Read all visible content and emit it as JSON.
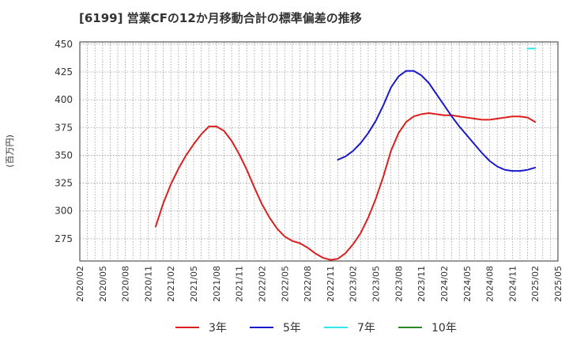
{
  "chart_data": {
    "type": "line",
    "title": "[6199]  営業CFの12か月移動合計の標準偏差の推移",
    "ylabel": "(百万円)",
    "xlabel": "",
    "ylim": [
      255,
      452
    ],
    "yticks": [
      275,
      300,
      325,
      350,
      375,
      400,
      425,
      450
    ],
    "xlim": [
      "2020-02",
      "2025-05"
    ],
    "xticks": [
      "2020/02",
      "2020/05",
      "2020/08",
      "2020/11",
      "2021/02",
      "2021/05",
      "2021/08",
      "2021/11",
      "2022/02",
      "2022/05",
      "2022/08",
      "2022/11",
      "2023/02",
      "2023/05",
      "2023/08",
      "2023/11",
      "2024/02",
      "2024/05",
      "2024/08",
      "2024/11",
      "2025/02",
      "2025/05"
    ],
    "grid": true,
    "legend_position": "bottom",
    "series": [
      {
        "name": "3年",
        "color": "#dd1f1f",
        "x": [
          "2020-12",
          "2021-01",
          "2021-02",
          "2021-03",
          "2021-04",
          "2021-05",
          "2021-06",
          "2021-07",
          "2021-08",
          "2021-09",
          "2021-10",
          "2021-11",
          "2021-12",
          "2022-01",
          "2022-02",
          "2022-03",
          "2022-04",
          "2022-05",
          "2022-06",
          "2022-07",
          "2022-08",
          "2022-09",
          "2022-10",
          "2022-11",
          "2022-12",
          "2023-01",
          "2023-02",
          "2023-03",
          "2023-04",
          "2023-05",
          "2023-06",
          "2023-07",
          "2023-08",
          "2023-09",
          "2023-10",
          "2023-11",
          "2023-12",
          "2024-01",
          "2024-02",
          "2024-03",
          "2024-04",
          "2024-05",
          "2024-06",
          "2024-07",
          "2024-08",
          "2024-09",
          "2024-10",
          "2024-11",
          "2024-12",
          "2025-01",
          "2025-02"
        ],
        "values": [
          286,
          307,
          324,
          338,
          350,
          360,
          369,
          376,
          376,
          372,
          363,
          351,
          337,
          321,
          306,
          294,
          284,
          277,
          273,
          271,
          267,
          262,
          258,
          256,
          257,
          262,
          270,
          280,
          294,
          311,
          331,
          354,
          370,
          380,
          385,
          387,
          388,
          387,
          386,
          386,
          385,
          384,
          383,
          382,
          382,
          383,
          384,
          385,
          385,
          384,
          380
        ]
      },
      {
        "name": "5年",
        "color": "#1a1acc",
        "x": [
          "2022-12",
          "2023-01",
          "2023-02",
          "2023-03",
          "2023-04",
          "2023-05",
          "2023-06",
          "2023-07",
          "2023-08",
          "2023-09",
          "2023-10",
          "2023-11",
          "2023-12",
          "2024-01",
          "2024-02",
          "2024-03",
          "2024-04",
          "2024-05",
          "2024-06",
          "2024-07",
          "2024-08",
          "2024-09",
          "2024-10",
          "2024-11",
          "2024-12",
          "2025-01",
          "2025-02"
        ],
        "values": [
          346,
          349,
          354,
          361,
          370,
          381,
          395,
          411,
          421,
          426,
          426,
          422,
          415,
          405,
          395,
          385,
          376,
          368,
          360,
          352,
          345,
          340,
          337,
          336,
          336,
          337,
          339
        ]
      },
      {
        "name": "7年",
        "color": "#2ee8ee",
        "x": [
          "2025-01",
          "2025-02"
        ],
        "values": [
          446,
          446
        ]
      },
      {
        "name": "10年",
        "color": "#2a8a2a",
        "x": [],
        "values": []
      }
    ]
  }
}
